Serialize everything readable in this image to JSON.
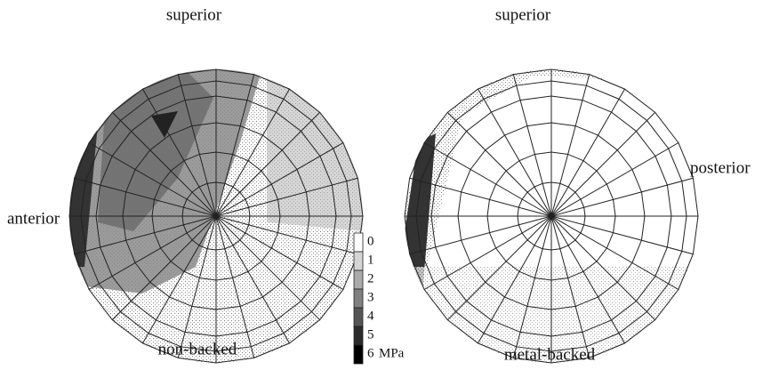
{
  "views": [
    {
      "label": "non-backed",
      "top": "superior",
      "side": "anterior"
    },
    {
      "label": "metal-backed",
      "top": "superior",
      "side": "posterior"
    }
  ],
  "legend": {
    "levels": [
      "0",
      "1",
      "2",
      "3",
      "4",
      "5",
      "6"
    ],
    "unit": "MPa"
  }
}
